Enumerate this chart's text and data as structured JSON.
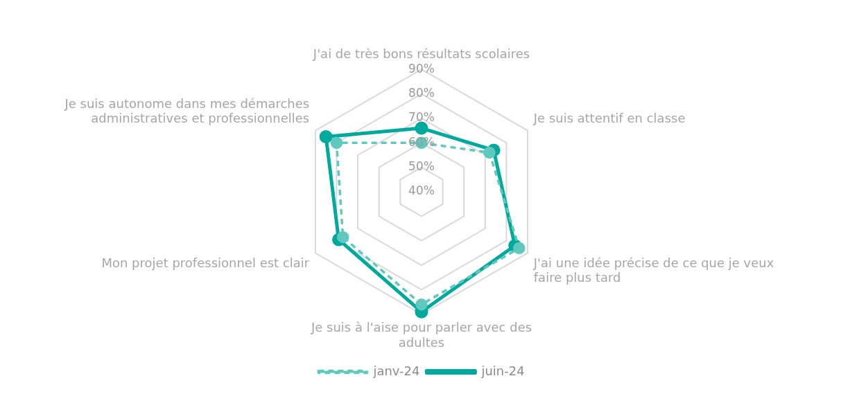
{
  "chart_data": {
    "type": "radar",
    "categories": [
      "J'ai de très bons résultats scolaires",
      "Je suis attentif en classe",
      "J'ai une idée précise de ce que je veux faire plus tard",
      "Je suis à l'aise pour parler avec des adultes",
      "Mon projet professionnel est clair",
      "Je suis autonome dans mes démarches administratives et professionnelles"
    ],
    "series": [
      {
        "name": "janv-24",
        "color": "#5fc9bd",
        "values": [
          60,
          72,
          86,
          86,
          77,
          80
        ],
        "line_style": "dashed"
      },
      {
        "name": "juin-24",
        "color": "#00a99d",
        "values": [
          66,
          74,
          84,
          89,
          79,
          85
        ],
        "line_style": "solid"
      }
    ],
    "ylim": [
      40,
      90
    ],
    "yticks": [
      {
        "value": 40,
        "label": "40%"
      },
      {
        "value": 50,
        "label": "50%"
      },
      {
        "value": 60,
        "label": "60%"
      },
      {
        "value": 70,
        "label": "70%"
      },
      {
        "value": 80,
        "label": "80%"
      },
      {
        "value": 90,
        "label": "90%"
      }
    ],
    "grid": true,
    "legend": "bottom",
    "marker": "circle"
  }
}
